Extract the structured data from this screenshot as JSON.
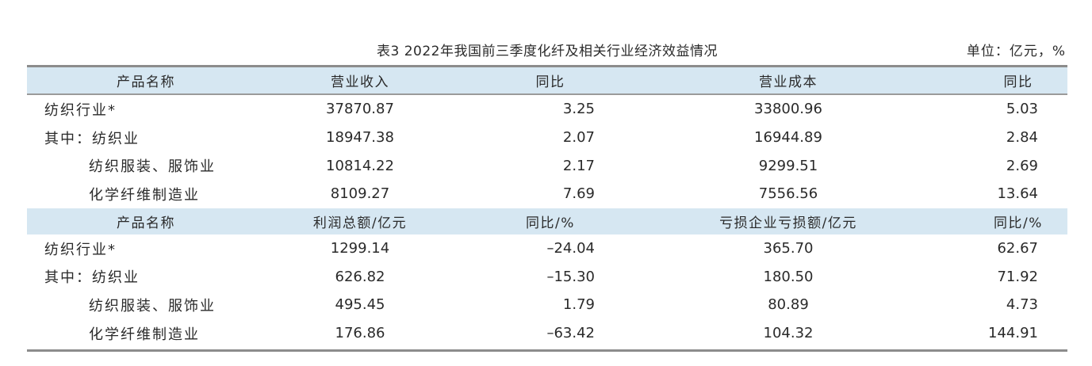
{
  "caption": {
    "title": "表3  2022年我国前三季度化纤及相关行业经济效益情况",
    "unit": "单位：亿元，%"
  },
  "sections": [
    {
      "headers": [
        "产品名称",
        "营业收入",
        "同比",
        "营业成本",
        "同比"
      ],
      "rows": [
        {
          "name": "纺织行业*",
          "v1": "37870.87",
          "v2": "3.25",
          "v3": "33800.96",
          "v4": "5.03"
        },
        {
          "name": "其中：纺织业",
          "v1": "18947.38",
          "v2": "2.07",
          "v3": "16944.89",
          "v4": "2.84"
        },
        {
          "name": "纺织服装、服饰业",
          "v1": "10814.22",
          "v2": "2.17",
          "v3": "9299.51",
          "v4": "2.69"
        },
        {
          "name": "化学纤维制造业",
          "v1": "8109.27",
          "v2": "7.69",
          "v3": "7556.56",
          "v4": "13.64"
        }
      ]
    },
    {
      "headers": [
        "产品名称",
        "利润总额/亿元",
        "同比/%",
        "亏损企业亏损额/亿元",
        "同比/%"
      ],
      "rows": [
        {
          "name": "纺织行业*",
          "v1": "1299.14",
          "v2": "–24.04",
          "v3": "365.70",
          "v4": "62.67"
        },
        {
          "name": "其中：纺织业",
          "v1": "626.82",
          "v2": "–15.30",
          "v3": "180.50",
          "v4": "71.92"
        },
        {
          "name": "纺织服装、服饰业",
          "v1": "495.45",
          "v2": "1.79",
          "v3": "80.89",
          "v4": "4.73"
        },
        {
          "name": "化学纤维制造业",
          "v1": "176.86",
          "v2": "–63.42",
          "v3": "104.32",
          "v4": "144.91"
        }
      ]
    }
  ]
}
